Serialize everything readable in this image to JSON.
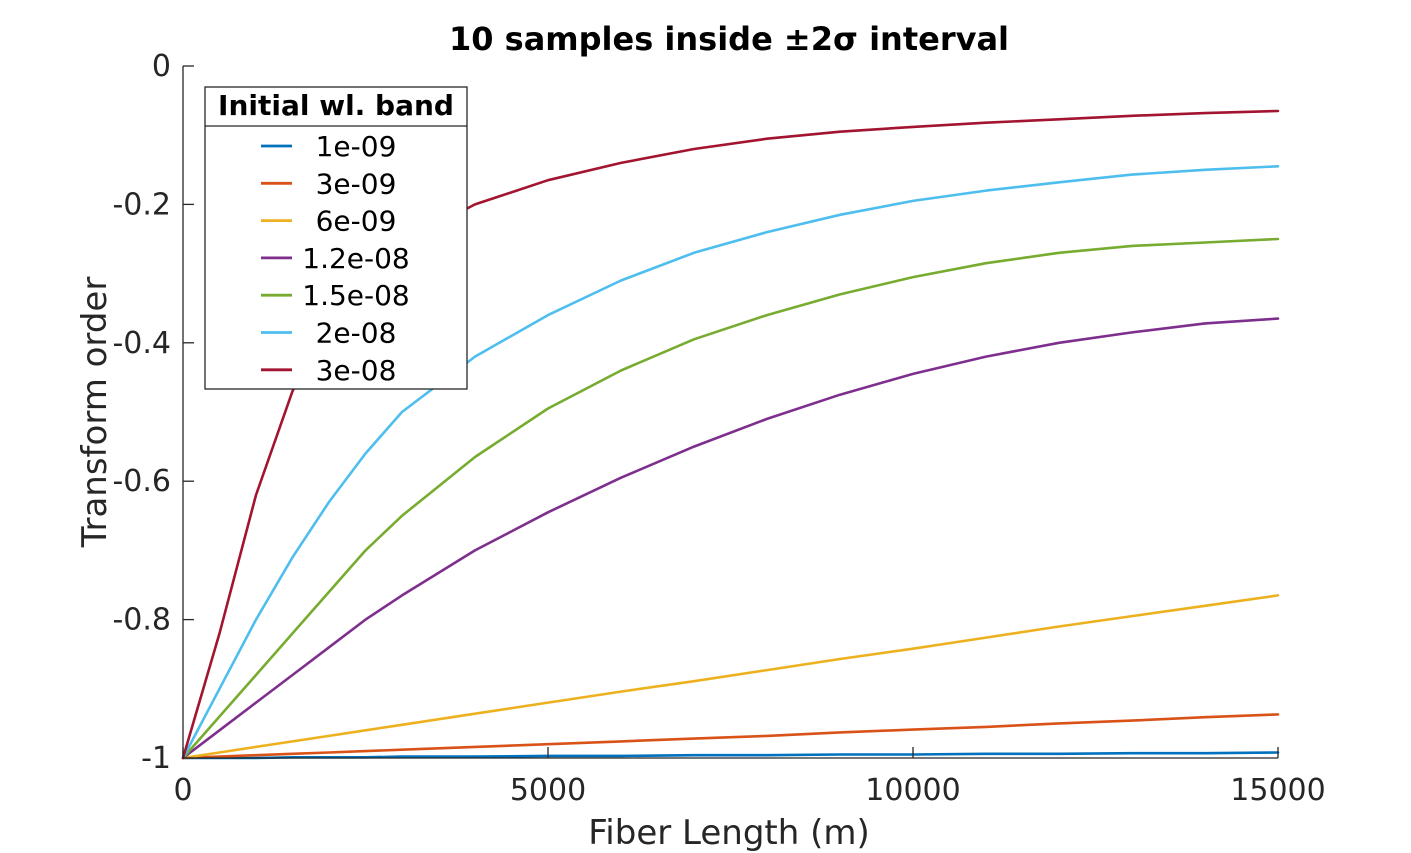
{
  "chart_data": {
    "type": "line",
    "title": "10 samples inside ±2σ interval",
    "xlabel": "Fiber Length (m)",
    "ylabel": "Transform order",
    "xlim": [
      0,
      15000
    ],
    "ylim": [
      -1,
      0
    ],
    "xticks": [
      0,
      5000,
      10000,
      15000
    ],
    "xtick_labels": [
      "0",
      "5000",
      "10000",
      "15000"
    ],
    "yticks": [
      0,
      -0.2,
      -0.4,
      -0.6,
      -0.8,
      -1
    ],
    "ytick_labels": [
      "0",
      "-0.2",
      "-0.4",
      "-0.6",
      "-0.8",
      "-1"
    ],
    "grid": false,
    "legend": {
      "title": "Initial wl. band",
      "position": "top-left"
    },
    "x": [
      0,
      500,
      1000,
      1500,
      2000,
      2500,
      3000,
      4000,
      5000,
      6000,
      7000,
      8000,
      9000,
      10000,
      11000,
      12000,
      13000,
      14000,
      15000
    ],
    "series": [
      {
        "name": "1e-09",
        "color": "#0072BD",
        "values": [
          -1,
          -1,
          -1,
          -0.999,
          -0.999,
          -0.999,
          -0.998,
          -0.998,
          -0.997,
          -0.997,
          -0.996,
          -0.996,
          -0.995,
          -0.995,
          -0.994,
          -0.994,
          -0.993,
          -0.993,
          -0.992
        ]
      },
      {
        "name": "3e-09",
        "color": "#D95319",
        "values": [
          -1,
          -0.998,
          -0.996,
          -0.994,
          -0.992,
          -0.99,
          -0.988,
          -0.984,
          -0.98,
          -0.976,
          -0.972,
          -0.968,
          -0.963,
          -0.959,
          -0.955,
          -0.95,
          -0.946,
          -0.941,
          -0.937
        ]
      },
      {
        "name": "6e-09",
        "color": "#EDB120",
        "values": [
          -1,
          -0.992,
          -0.984,
          -0.976,
          -0.968,
          -0.96,
          -0.952,
          -0.936,
          -0.92,
          -0.904,
          -0.889,
          -0.873,
          -0.857,
          -0.842,
          -0.826,
          -0.81,
          -0.795,
          -0.78,
          -0.765
        ]
      },
      {
        "name": "1.2e-08",
        "color": "#7E2F8E",
        "values": [
          -1,
          -0.96,
          -0.92,
          -0.88,
          -0.84,
          -0.8,
          -0.765,
          -0.7,
          -0.645,
          -0.595,
          -0.55,
          -0.51,
          -0.475,
          -0.445,
          -0.42,
          -0.4,
          -0.385,
          -0.372,
          -0.365
        ]
      },
      {
        "name": "1.5e-08",
        "color": "#77AC30",
        "values": [
          -1,
          -0.94,
          -0.88,
          -0.82,
          -0.76,
          -0.7,
          -0.65,
          -0.565,
          -0.495,
          -0.44,
          -0.395,
          -0.36,
          -0.33,
          -0.305,
          -0.285,
          -0.27,
          -0.26,
          -0.255,
          -0.25
        ]
      },
      {
        "name": "2e-08",
        "color": "#4DBEEE",
        "values": [
          -1,
          -0.9,
          -0.8,
          -0.71,
          -0.63,
          -0.56,
          -0.5,
          -0.42,
          -0.36,
          -0.31,
          -0.27,
          -0.24,
          -0.215,
          -0.195,
          -0.18,
          -0.168,
          -0.157,
          -0.15,
          -0.145
        ]
      },
      {
        "name": "3e-08",
        "color": "#A2142F",
        "values": [
          -1,
          -0.82,
          -0.62,
          -0.47,
          -0.37,
          -0.3,
          -0.255,
          -0.2,
          -0.165,
          -0.14,
          -0.12,
          -0.105,
          -0.095,
          -0.088,
          -0.082,
          -0.077,
          -0.072,
          -0.068,
          -0.065
        ]
      }
    ]
  }
}
